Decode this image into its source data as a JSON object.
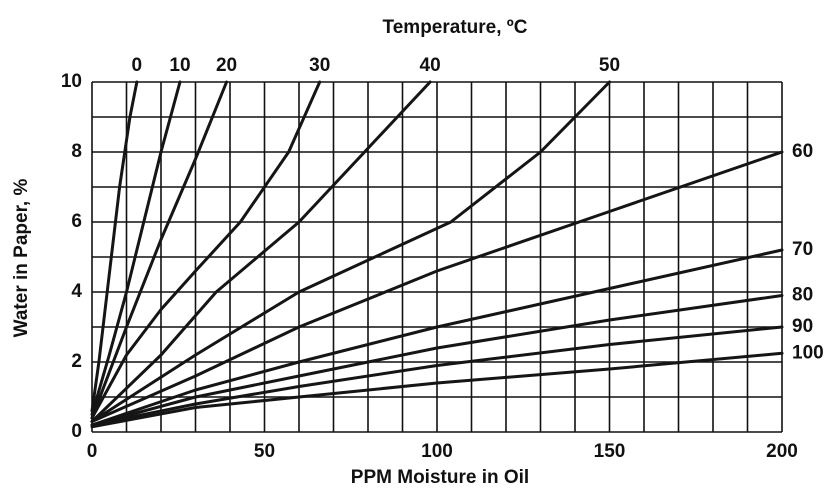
{
  "chart_data": {
    "type": "line",
    "title": "Temperature, ºC",
    "x_label": "PPM Moisture in Oil",
    "y_label": "Water in Paper, %",
    "xlim": [
      0,
      200
    ],
    "ylim": [
      0,
      10
    ],
    "xticks": [
      0,
      50,
      100,
      150,
      200
    ],
    "yticks": [
      0,
      2,
      4,
      6,
      8,
      10
    ],
    "x_grid": [
      0,
      10,
      20,
      30,
      40,
      50,
      60,
      70,
      80,
      90,
      100,
      110,
      120,
      130,
      140,
      150,
      160,
      170,
      180,
      190,
      200
    ],
    "y_grid": [
      0,
      1,
      2,
      3,
      4,
      5,
      6,
      7,
      8,
      9,
      10
    ],
    "grid": true,
    "color": "#151515",
    "series": [
      {
        "name": "0",
        "x": [
          0,
          2,
          5,
          8,
          11,
          13
        ],
        "values": [
          0.6,
          2,
          4.5,
          7,
          9,
          10
        ]
      },
      {
        "name": "10",
        "x": [
          0,
          5,
          10,
          15,
          20,
          25.5
        ],
        "values": [
          0.5,
          2.2,
          4,
          6,
          8,
          10
        ]
      },
      {
        "name": "20",
        "x": [
          0,
          10,
          20,
          30,
          39
        ],
        "values": [
          0.4,
          3,
          5.5,
          7.8,
          10
        ]
      },
      {
        "name": "30",
        "x": [
          0,
          10,
          20,
          30,
          43,
          57,
          66
        ],
        "values": [
          0.4,
          2.2,
          3.5,
          4.6,
          6,
          8,
          10
        ]
      },
      {
        "name": "40",
        "x": [
          0,
          20,
          36,
          60,
          79,
          98
        ],
        "values": [
          0.3,
          2.2,
          4,
          6,
          8,
          10
        ]
      },
      {
        "name": "50",
        "x": [
          0,
          30,
          60,
          104,
          130,
          150
        ],
        "values": [
          0.3,
          2.2,
          4,
          6,
          8,
          10
        ]
      },
      {
        "name": "60",
        "x": [
          0,
          30,
          60,
          100,
          150,
          200
        ],
        "values": [
          0.3,
          1.6,
          3,
          4.6,
          6.3,
          8
        ]
      },
      {
        "name": "70",
        "x": [
          0,
          30,
          60,
          100,
          150,
          200
        ],
        "values": [
          0.2,
          1.2,
          2,
          3,
          4.1,
          5.2
        ]
      },
      {
        "name": "80",
        "x": [
          0,
          30,
          60,
          100,
          150,
          200
        ],
        "values": [
          0.2,
          1,
          1.6,
          2.4,
          3.2,
          3.9
        ]
      },
      {
        "name": "90",
        "x": [
          0,
          30,
          60,
          100,
          150,
          200
        ],
        "values": [
          0.2,
          0.8,
          1.3,
          1.9,
          2.5,
          3
        ]
      },
      {
        "name": "100",
        "x": [
          0,
          30,
          60,
          100,
          150,
          200
        ],
        "values": [
          0.15,
          0.7,
          1.0,
          1.4,
          1.8,
          2.25
        ]
      }
    ]
  }
}
